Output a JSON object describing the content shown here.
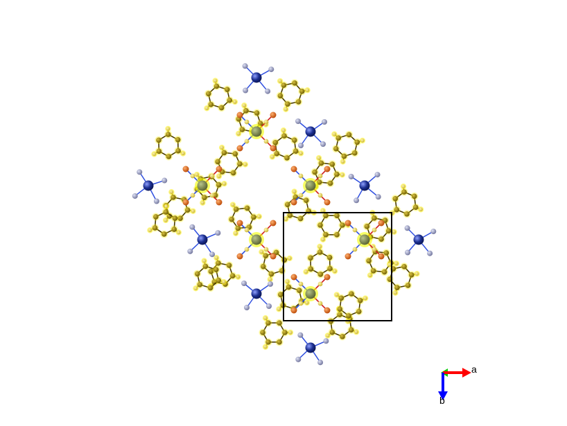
{
  "viewer": {
    "background": "#ffffff",
    "colors": {
      "carbon": "#a08a00",
      "carbon_edge": "#6b5a00",
      "hydrogen": "#e9d84a",
      "hydrogen_glow": "#fff200",
      "oxygen": "#e05a00",
      "metal": "#7d8a52",
      "metal_glow": "#f2ff00",
      "ammonium_n": "#1b2e8f",
      "ammonium_h": "#8e92b8",
      "bond_dark": "#4a3c00",
      "bond_blue": "#3050e0",
      "bond_red": "#d02020",
      "cell": "#000000"
    },
    "visible_structure": [
      "metal-centres",
      "aromatic-ligands",
      "oxygen-atoms",
      "ammonium-cations",
      "unit-cell-box"
    ]
  },
  "axes": {
    "a_label": "a",
    "b_label": "b",
    "a_color": "#ff0000",
    "b_color": "#0000ff",
    "c_color": "#00cc00"
  }
}
